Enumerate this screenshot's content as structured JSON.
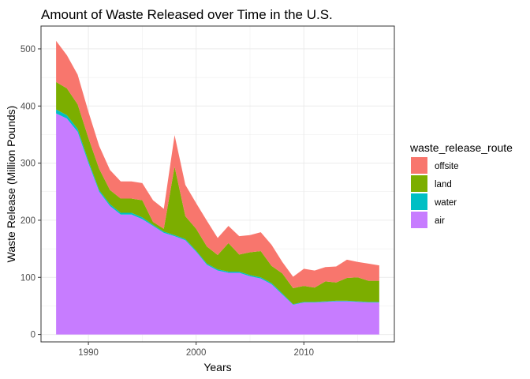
{
  "chart_data": {
    "type": "area",
    "stacked": true,
    "title": "Amount of Waste Released over Time in the U.S.",
    "xlabel": "Years",
    "ylabel": "Waste Release (Million Pounds)",
    "xlim": [
      1985.6,
      2018.4
    ],
    "ylim": [
      -13,
      540
    ],
    "x_ticks": [
      1990,
      2000,
      2010
    ],
    "y_ticks": [
      0,
      100,
      200,
      300,
      400,
      500
    ],
    "grid": true,
    "legend_title": "waste_release_route",
    "legend_position": "right",
    "x": [
      1987,
      1988,
      1989,
      1990,
      1991,
      1992,
      1993,
      1994,
      1995,
      1996,
      1997,
      1998,
      1999,
      2000,
      2001,
      2002,
      2003,
      2004,
      2005,
      2006,
      2007,
      2008,
      2009,
      2010,
      2011,
      2012,
      2013,
      2014,
      2015,
      2016,
      2017
    ],
    "series": [
      {
        "name": "air",
        "color": "#C77CFF",
        "values": [
          387,
          378,
          355,
          300,
          250,
          225,
          210,
          210,
          202,
          190,
          178,
          172,
          165,
          145,
          122,
          112,
          108,
          108,
          102,
          98,
          88,
          70,
          52,
          56,
          56,
          57,
          58,
          58,
          57,
          56,
          56
        ]
      },
      {
        "name": "water",
        "color": "#00BFC4",
        "values": [
          7,
          6,
          5,
          4,
          3,
          3,
          3,
          3,
          3,
          2,
          2,
          2,
          2,
          2,
          2,
          2,
          2,
          2,
          2,
          2,
          2,
          2,
          1,
          1,
          1,
          1,
          1,
          1,
          1,
          1,
          1
        ]
      },
      {
        "name": "land",
        "color": "#7CAE00",
        "values": [
          48,
          47,
          43,
          40,
          37,
          25,
          25,
          25,
          30,
          5,
          5,
          120,
          40,
          38,
          30,
          25,
          50,
          30,
          40,
          46,
          30,
          35,
          28,
          28,
          25,
          35,
          32,
          40,
          42,
          37,
          37
        ]
      },
      {
        "name": "offsite",
        "color": "#F8766D",
        "values": [
          72,
          58,
          52,
          46,
          40,
          35,
          30,
          30,
          30,
          38,
          35,
          55,
          55,
          45,
          45,
          30,
          30,
          32,
          30,
          33,
          37,
          20,
          20,
          30,
          30,
          25,
          28,
          32,
          27,
          30,
          27
        ]
      }
    ],
    "legend": [
      "offsite",
      "land",
      "water",
      "air"
    ]
  }
}
